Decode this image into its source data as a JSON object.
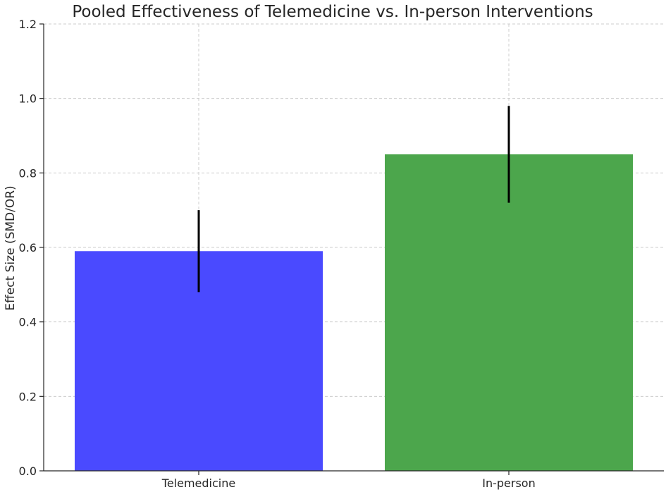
{
  "chart_data": {
    "type": "bar",
    "title": "Pooled Effectiveness of Telemedicine vs. In-person Interventions",
    "xlabel": "",
    "ylabel": "Effect Size (SMD/OR)",
    "categories": [
      "Telemedicine",
      "In-person"
    ],
    "values": [
      0.59,
      0.85
    ],
    "error_low": [
      0.48,
      0.72
    ],
    "error_high": [
      0.7,
      0.98
    ],
    "colors": [
      "#4a4aff",
      "#4ca64c"
    ],
    "error_color": "#000000",
    "ylim": [
      0,
      1.2
    ],
    "yticks": [
      "0.0",
      "0.2",
      "0.4",
      "0.6",
      "0.8",
      "1.0",
      "1.2"
    ],
    "grid": true
  }
}
